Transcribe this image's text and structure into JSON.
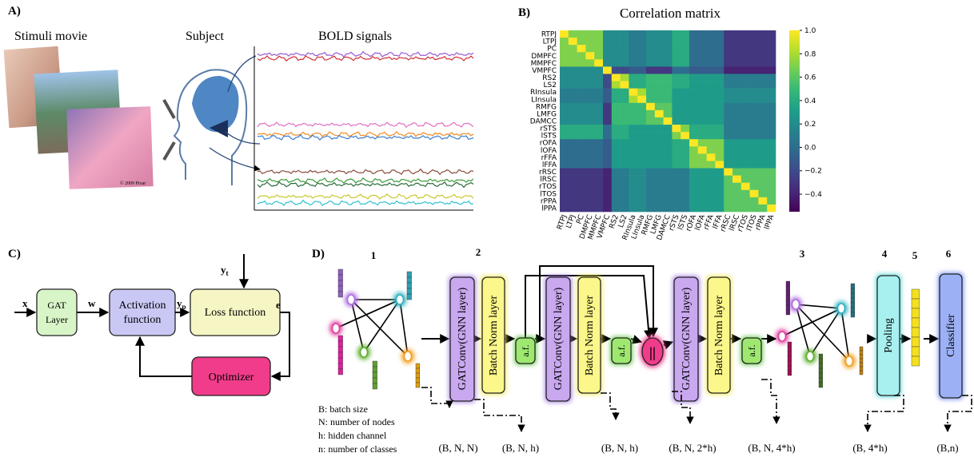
{
  "panel_a": {
    "label": "A)",
    "stimuli": "Stimuli movie",
    "subject": "Subject",
    "bold": "BOLD signals",
    "copyright": "© 2009 Pixar"
  },
  "chart_data": {
    "type": "heatmap",
    "panel_label": "B)",
    "title": "Correlation matrix",
    "labels": [
      "RTPJ",
      "LTPJ",
      "PC",
      "DMPFC",
      "MMPFC",
      "VMPFC",
      "RS2",
      "LS2",
      "RInsula",
      "LInsula",
      "RMFG",
      "LMFG",
      "DAMCC",
      "rSTS",
      "lSTS",
      "rOFA",
      "lOFA",
      "rFFA",
      "lFFA",
      "rRSC",
      "lRSC",
      "rTOS",
      "lTOS",
      "rPPA",
      "lPPA"
    ],
    "values": [
      [
        1,
        0.7,
        0.7,
        0.7,
        0.7,
        0.2,
        0.2,
        0.2,
        0.1,
        0.1,
        0.2,
        0.2,
        0.2,
        0.4,
        0.4,
        0,
        0,
        0,
        0,
        -0.3,
        -0.3,
        -0.3,
        -0.3,
        -0.3,
        -0.3
      ],
      [
        0.7,
        1,
        0.7,
        0.7,
        0.7,
        0.2,
        0.2,
        0.2,
        0.1,
        0.1,
        0.2,
        0.2,
        0.2,
        0.4,
        0.4,
        0,
        0,
        0,
        0,
        -0.3,
        -0.3,
        -0.3,
        -0.3,
        -0.3,
        -0.3
      ],
      [
        0.7,
        0.7,
        1,
        0.7,
        0.7,
        0.2,
        0.2,
        0.2,
        0.1,
        0.1,
        0.2,
        0.2,
        0.2,
        0.4,
        0.4,
        0,
        0,
        0,
        0,
        -0.3,
        -0.3,
        -0.3,
        -0.3,
        -0.3,
        -0.3
      ],
      [
        0.7,
        0.7,
        0.7,
        1,
        0.7,
        0.2,
        0.2,
        0.2,
        0.1,
        0.1,
        0.2,
        0.2,
        0.2,
        0.4,
        0.4,
        0,
        0,
        0,
        0,
        -0.3,
        -0.3,
        -0.3,
        -0.3,
        -0.3,
        -0.3
      ],
      [
        0.7,
        0.7,
        0.7,
        0.7,
        1,
        0.2,
        0.2,
        0.2,
        0.1,
        0.1,
        0.2,
        0.2,
        0.2,
        0.4,
        0.4,
        0,
        0,
        0,
        0,
        -0.3,
        -0.3,
        -0.3,
        -0.3,
        -0.3,
        -0.3
      ],
      [
        0.2,
        0.2,
        0.2,
        0.2,
        0.2,
        1,
        -0.2,
        -0.2,
        -0.1,
        -0.1,
        -0.3,
        -0.3,
        -0.3,
        0,
        0,
        -0.1,
        -0.1,
        -0.1,
        -0.1,
        -0.4,
        -0.4,
        -0.4,
        -0.4,
        -0.4,
        -0.4
      ],
      [
        0.2,
        0.2,
        0.2,
        0.2,
        0.2,
        -0.2,
        1,
        0.8,
        0.4,
        0.4,
        0.5,
        0.5,
        0.5,
        0.4,
        0.4,
        0.3,
        0.3,
        0.3,
        0.3,
        0.1,
        0.1,
        0.1,
        0.1,
        0.1,
        0.1
      ],
      [
        0.2,
        0.2,
        0.2,
        0.2,
        0.2,
        -0.2,
        0.8,
        1,
        0.4,
        0.4,
        0.5,
        0.5,
        0.5,
        0.4,
        0.4,
        0.3,
        0.3,
        0.3,
        0.3,
        0.1,
        0.1,
        0.1,
        0.1,
        0.1,
        0.1
      ],
      [
        0.1,
        0.1,
        0.1,
        0.1,
        0.1,
        -0.1,
        0.4,
        0.4,
        1,
        0.8,
        0.5,
        0.5,
        0.5,
        0.3,
        0.3,
        0.3,
        0.3,
        0.3,
        0.3,
        0.2,
        0.2,
        0.2,
        0.2,
        0.2,
        0.2
      ],
      [
        0.1,
        0.1,
        0.1,
        0.1,
        0.1,
        -0.1,
        0.4,
        0.4,
        0.8,
        1,
        0.5,
        0.5,
        0.5,
        0.3,
        0.3,
        0.3,
        0.3,
        0.3,
        0.3,
        0.2,
        0.2,
        0.2,
        0.2,
        0.2,
        0.2
      ],
      [
        0.2,
        0.2,
        0.2,
        0.2,
        0.2,
        -0.3,
        0.5,
        0.5,
        0.5,
        0.5,
        1,
        0.6,
        0.6,
        0.3,
        0.3,
        0.3,
        0.3,
        0.3,
        0.3,
        0.1,
        0.1,
        0.1,
        0.1,
        0.1,
        0.1
      ],
      [
        0.2,
        0.2,
        0.2,
        0.2,
        0.2,
        -0.3,
        0.5,
        0.5,
        0.5,
        0.5,
        0.6,
        1,
        0.6,
        0.3,
        0.3,
        0.3,
        0.3,
        0.3,
        0.3,
        0.1,
        0.1,
        0.1,
        0.1,
        0.1,
        0.1
      ],
      [
        0.2,
        0.2,
        0.2,
        0.2,
        0.2,
        -0.3,
        0.5,
        0.5,
        0.5,
        0.5,
        0.6,
        0.6,
        1,
        0.3,
        0.3,
        0.3,
        0.3,
        0.3,
        0.3,
        0.1,
        0.1,
        0.1,
        0.1,
        0.1,
        0.1
      ],
      [
        0.4,
        0.4,
        0.4,
        0.4,
        0.4,
        0,
        0.4,
        0.4,
        0.3,
        0.3,
        0.3,
        0.3,
        0.3,
        1,
        0.7,
        0.4,
        0.4,
        0.4,
        0.4,
        0.1,
        0.1,
        0.1,
        0.1,
        0.1,
        0.1
      ],
      [
        0.4,
        0.4,
        0.4,
        0.4,
        0.4,
        0,
        0.4,
        0.4,
        0.3,
        0.3,
        0.3,
        0.3,
        0.3,
        0.7,
        1,
        0.4,
        0.4,
        0.4,
        0.4,
        0.1,
        0.1,
        0.1,
        0.1,
        0.1,
        0.1
      ],
      [
        0,
        0,
        0,
        0,
        0,
        -0.1,
        0.3,
        0.3,
        0.3,
        0.3,
        0.3,
        0.3,
        0.3,
        0.4,
        0.4,
        1,
        0.7,
        0.7,
        0.7,
        0.3,
        0.3,
        0.3,
        0.3,
        0.3,
        0.3
      ],
      [
        0,
        0,
        0,
        0,
        0,
        -0.1,
        0.3,
        0.3,
        0.3,
        0.3,
        0.3,
        0.3,
        0.3,
        0.4,
        0.4,
        0.7,
        1,
        0.7,
        0.7,
        0.3,
        0.3,
        0.3,
        0.3,
        0.3,
        0.3
      ],
      [
        0,
        0,
        0,
        0,
        0,
        -0.1,
        0.3,
        0.3,
        0.3,
        0.3,
        0.3,
        0.3,
        0.3,
        0.4,
        0.4,
        0.7,
        0.7,
        1,
        0.7,
        0.3,
        0.3,
        0.3,
        0.3,
        0.3,
        0.3
      ],
      [
        0,
        0,
        0,
        0,
        0,
        -0.1,
        0.3,
        0.3,
        0.3,
        0.3,
        0.3,
        0.3,
        0.3,
        0.4,
        0.4,
        0.7,
        0.7,
        0.7,
        1,
        0.3,
        0.3,
        0.3,
        0.3,
        0.3,
        0.3
      ],
      [
        -0.3,
        -0.3,
        -0.3,
        -0.3,
        -0.3,
        -0.4,
        0.1,
        0.1,
        0.2,
        0.2,
        0.1,
        0.1,
        0.1,
        0.1,
        0.1,
        0.3,
        0.3,
        0.3,
        0.3,
        1,
        0.6,
        0.6,
        0.6,
        0.6,
        0.6
      ],
      [
        -0.3,
        -0.3,
        -0.3,
        -0.3,
        -0.3,
        -0.4,
        0.1,
        0.1,
        0.2,
        0.2,
        0.1,
        0.1,
        0.1,
        0.1,
        0.1,
        0.3,
        0.3,
        0.3,
        0.3,
        0.6,
        1,
        0.6,
        0.6,
        0.6,
        0.6
      ],
      [
        -0.3,
        -0.3,
        -0.3,
        -0.3,
        -0.3,
        -0.4,
        0.1,
        0.1,
        0.2,
        0.2,
        0.1,
        0.1,
        0.1,
        0.1,
        0.1,
        0.3,
        0.3,
        0.3,
        0.3,
        0.6,
        0.6,
        1,
        0.6,
        0.6,
        0.6
      ],
      [
        -0.3,
        -0.3,
        -0.3,
        -0.3,
        -0.3,
        -0.4,
        0.1,
        0.1,
        0.2,
        0.2,
        0.1,
        0.1,
        0.1,
        0.1,
        0.1,
        0.3,
        0.3,
        0.3,
        0.3,
        0.6,
        0.6,
        0.6,
        1,
        0.6,
        0.6
      ],
      [
        -0.3,
        -0.3,
        -0.3,
        -0.3,
        -0.3,
        -0.4,
        0.1,
        0.1,
        0.2,
        0.2,
        0.1,
        0.1,
        0.1,
        0.1,
        0.1,
        0.3,
        0.3,
        0.3,
        0.3,
        0.6,
        0.6,
        0.6,
        0.6,
        1,
        0.6
      ],
      [
        -0.3,
        -0.3,
        -0.3,
        -0.3,
        -0.3,
        -0.4,
        0.1,
        0.1,
        0.2,
        0.2,
        0.1,
        0.1,
        0.1,
        0.1,
        0.1,
        0.3,
        0.3,
        0.3,
        0.3,
        0.6,
        0.6,
        0.6,
        0.6,
        0.6,
        1
      ]
    ],
    "clim": [
      -0.55,
      1
    ],
    "cticks": [
      {
        "value": 1,
        "label": "1.0"
      },
      0.8,
      0.6,
      0.4,
      0.2,
      {
        "value": 0,
        "label": "0.0"
      },
      {
        "value": -0.2,
        "label": "−0.2"
      },
      {
        "value": -0.4,
        "label": "−0.4"
      }
    ],
    "colormap": "viridis"
  },
  "panel_c": {
    "label": "C)",
    "gat": [
      "GAT",
      "Layer"
    ],
    "activation": [
      "Activation",
      "function"
    ],
    "loss": "Loss function",
    "optimizer": "Optimizer",
    "x": "x",
    "w": "w",
    "e": "e",
    "yp": {
      "base": "y",
      "sub": "p"
    },
    "yt": {
      "base": "y",
      "sub": "t"
    }
  },
  "panel_d": {
    "label": "D)",
    "steps": [
      "1",
      "2",
      "3",
      "4",
      "5",
      "6"
    ],
    "gatconv": "GATConv(GNN layer)",
    "batchnorm": "Batch Norm layer",
    "af": "a.f.",
    "concat": "||",
    "pooling": "Pooling",
    "classifier": "Classifier",
    "shapes": [
      "(B, N, N)",
      "(B, N, h)",
      "(B, N, h)",
      "(B, N, 2*h)",
      "(B, N, 4*h)",
      "(B, 4*h)",
      "(B,n)"
    ],
    "legend": [
      "B: batch size",
      "N: number of nodes",
      "h: hidden channel",
      "n: number of classes"
    ]
  }
}
